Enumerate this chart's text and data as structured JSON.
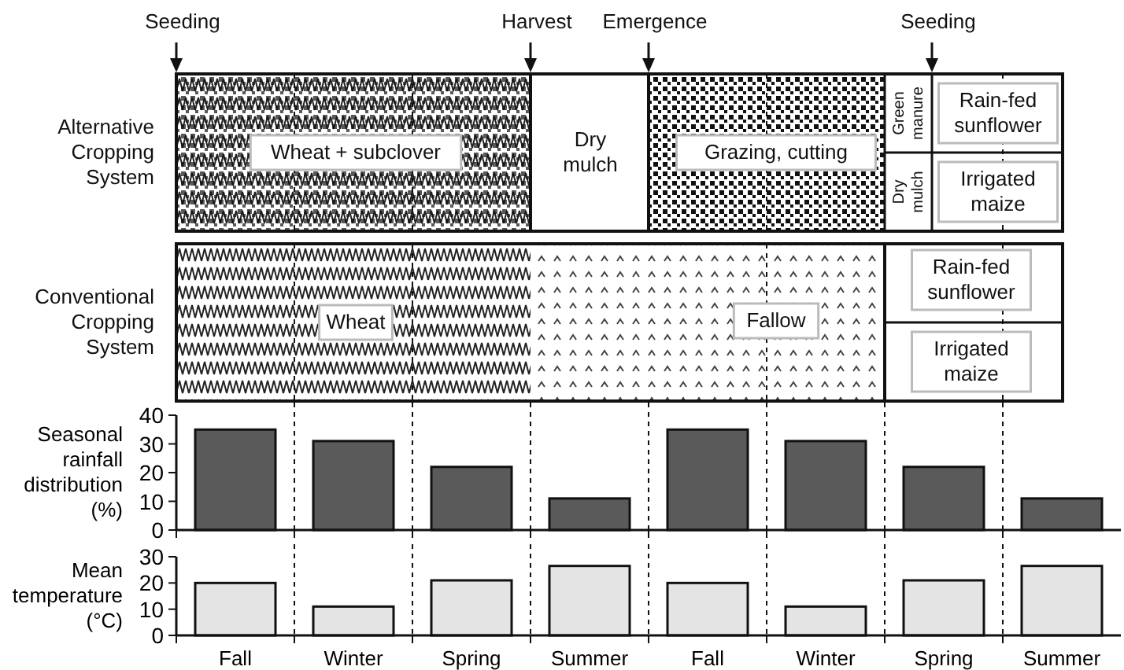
{
  "chart_data": [
    {
      "type": "other",
      "annotations": [
        "Seeding",
        "Harvest",
        "Emergence",
        "Seeding",
        "Alternative Cropping System",
        "Wheat + subclover",
        "Dry mulch",
        "Grazing, cutting",
        "Green manure",
        "Dry mulch",
        "Rain-fed sunflower",
        "Irrigated maize",
        "Conventional Cropping System",
        "Wheat",
        "Fallow",
        "Rain-fed sunflower",
        "Irrigated maize"
      ]
    },
    {
      "type": "bar",
      "ylabel": "Seasonal rainfall distribution (%)",
      "categories": [
        null,
        null,
        null,
        null,
        null,
        null,
        null,
        null
      ],
      "values": [
        35,
        31,
        22,
        11,
        35,
        31,
        22,
        11
      ],
      "color": "#5a5a5a",
      "ylim": [
        0,
        40
      ],
      "yticks": [
        0,
        10,
        20,
        30,
        40
      ],
      "grid": "x"
    },
    {
      "type": "bar",
      "ylabel": "Mean temperature (°C)",
      "categories": [
        "Fall",
        "Winter",
        "Spring",
        "Summer",
        "Fall",
        "Winter",
        "Spring",
        "Summer"
      ],
      "values": [
        20,
        11,
        21,
        26.5,
        20,
        11,
        21,
        26.5
      ],
      "color": "#e4e4e4",
      "ylim": [
        0,
        30
      ],
      "yticks": [
        0,
        10,
        20,
        30
      ],
      "grid": "x"
    }
  ]
}
